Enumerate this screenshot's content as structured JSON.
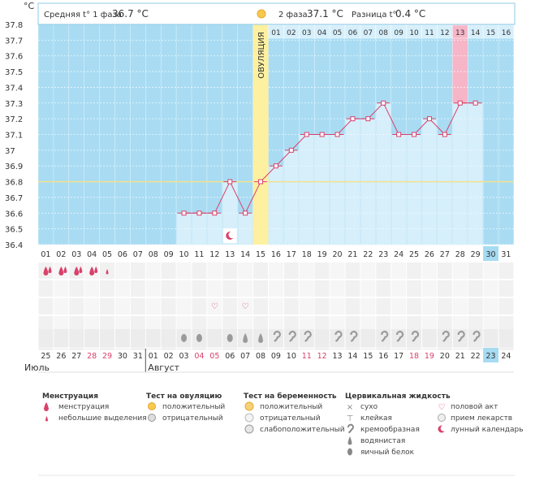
{
  "header": {
    "unit": "°C",
    "phase1_label": "Средняя t° 1 фаза",
    "phase1_value": "36.7 °C",
    "phase2_label": "2 фаза",
    "phase2_value": "37.1 °C",
    "diff_label": "Разница t°",
    "diff_value": "0.4 °C"
  },
  "ovulation_label": "ОВУЛЯЦИЯ",
  "months": {
    "left": "Июль",
    "right": "Август"
  },
  "chart_data": {
    "type": "line",
    "xlabel": "",
    "ylabel": "°C",
    "ylim": [
      36.4,
      37.8
    ],
    "yticks": [
      "36.4",
      "36.5",
      "36.6",
      "36.7",
      "36.8",
      "36.9",
      "37",
      "37.1",
      "37.2",
      "37.3",
      "37.4",
      "37.5",
      "37.6",
      "37.7",
      "37.8"
    ],
    "cycle_days": [
      "01",
      "02",
      "03",
      "04",
      "05",
      "06",
      "07",
      "08",
      "09",
      "10",
      "11",
      "12",
      "13",
      "14",
      "15",
      "16",
      "17",
      "18",
      "19",
      "20",
      "21",
      "22",
      "23",
      "24",
      "25",
      "26",
      "27",
      "28",
      "29",
      "30",
      "31"
    ],
    "calendar_dates": [
      "25",
      "26",
      "27",
      "28",
      "29",
      "30",
      "31",
      "01",
      "02",
      "03",
      "04",
      "05",
      "06",
      "07",
      "08",
      "09",
      "10",
      "11",
      "12",
      "13",
      "14",
      "15",
      "16",
      "17",
      "18",
      "19",
      "20",
      "21",
      "22",
      "23",
      "24"
    ],
    "weekend_dates_indices": [
      3,
      4,
      10,
      11,
      17,
      18,
      24,
      25
    ],
    "today_index": 29,
    "phase2_days": [
      "01",
      "02",
      "03",
      "04",
      "05",
      "06",
      "07",
      "08",
      "09",
      "10",
      "11",
      "12",
      "13",
      "14",
      "15",
      "16"
    ],
    "phase2_highlight_index": 12,
    "ovulation_day_index": 14,
    "coverline": 36.8,
    "series": [
      {
        "values": [
          null,
          null,
          null,
          null,
          null,
          null,
          null,
          null,
          null,
          36.6,
          36.6,
          36.6,
          36.8,
          36.6,
          36.8,
          36.9,
          37.0,
          37.1,
          37.1,
          37.1,
          37.2,
          37.2,
          37.3,
          37.1,
          37.1,
          37.2,
          37.1,
          37.3,
          37.3,
          null,
          null
        ]
      }
    ],
    "grid": true
  },
  "symbols": {
    "menstruation": [
      1,
      1,
      1,
      1,
      0,
      0,
      0,
      0,
      0,
      0,
      0,
      0,
      0,
      0,
      0,
      0,
      0,
      0,
      0,
      0,
      0,
      0,
      0,
      0,
      0,
      0,
      0,
      0,
      0,
      0,
      0
    ],
    "spotting": [
      0,
      0,
      0,
      0,
      1,
      0,
      0,
      0,
      0,
      0,
      0,
      0,
      0,
      0,
      0,
      0,
      0,
      0,
      0,
      0,
      0,
      0,
      0,
      0,
      0,
      0,
      0,
      0,
      0,
      0,
      0
    ],
    "intercourse": [
      0,
      0,
      0,
      0,
      0,
      0,
      0,
      0,
      0,
      0,
      0,
      1,
      0,
      1,
      0,
      0,
      0,
      0,
      0,
      0,
      0,
      0,
      0,
      0,
      0,
      0,
      0,
      0,
      0,
      0,
      0
    ],
    "fluid_eggwhite": [
      0,
      0,
      0,
      0,
      0,
      0,
      0,
      0,
      0,
      1,
      1,
      0,
      1,
      0,
      0,
      0,
      0,
      0,
      0,
      0,
      0,
      0,
      0,
      0,
      0,
      0,
      0,
      0,
      0,
      0,
      0
    ],
    "fluid_watery": [
      0,
      0,
      0,
      0,
      0,
      0,
      0,
      0,
      0,
      0,
      0,
      0,
      0,
      1,
      1,
      0,
      0,
      0,
      0,
      0,
      0,
      0,
      0,
      0,
      0,
      0,
      0,
      0,
      0,
      0,
      0
    ],
    "fluid_creamy": [
      0,
      0,
      0,
      0,
      0,
      0,
      0,
      0,
      0,
      0,
      0,
      0,
      0,
      0,
      0,
      1,
      1,
      1,
      0,
      1,
      1,
      0,
      1,
      1,
      1,
      0,
      1,
      1,
      1,
      0,
      0
    ],
    "moon_day_index": 12
  },
  "legend": {
    "menstruation": {
      "title": "Менструация",
      "items": [
        "менструация",
        "небольшие выделения"
      ]
    },
    "ovulation_test": {
      "title": "Тест на овуляцию",
      "items": [
        "положительный",
        "отрицательный"
      ]
    },
    "pregnancy_test": {
      "title": "Тест на беременность",
      "items": [
        "положительный",
        "отрицательный",
        "слабоположительный"
      ]
    },
    "cervical_fluid": {
      "title": "Цервикальная жидкость",
      "items": [
        "сухо",
        "клейкая",
        "кремообразная",
        "водянистая",
        "яичный белок"
      ]
    },
    "other": {
      "items": [
        "половой акт",
        "прием лекарств",
        "лунный календарь"
      ]
    }
  },
  "colors": {
    "plot_bg": "#a9dcf3",
    "bar_fill": "#d6effb",
    "line": "#d9416b",
    "ovulation": "#fdf0a0",
    "highlight": "#f6b6c8",
    "today": "#a6dbf2",
    "weekend": "#d9416b"
  }
}
